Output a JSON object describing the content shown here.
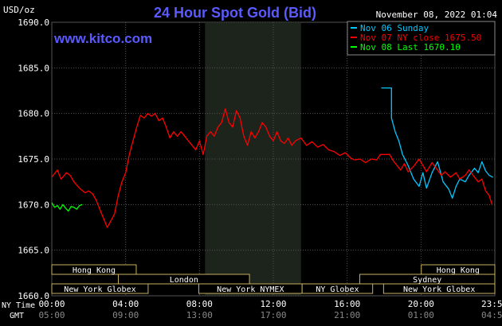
{
  "header": {
    "title": "24 Hour Spot Gold (Bid)",
    "unit": "USD/oz",
    "timestamp": "November 08, 2022 01:04",
    "site": "www.kitco.com"
  },
  "legend": {
    "items": [
      {
        "label": "Nov 06 Sunday",
        "color": "#00c8ff"
      },
      {
        "label": "Nov 07 NY close 1675.50",
        "color": "#ff0000"
      },
      {
        "label": "Nov 08 Last 1670.10",
        "color": "#00ff00"
      }
    ]
  },
  "axes": {
    "y_ticks": [
      "1690.0",
      "1685.0",
      "1680.0",
      "1675.0",
      "1670.0",
      "1665.0",
      "1660.0"
    ],
    "x_ticks_ny": [
      "00:00",
      "04:00",
      "08:00",
      "12:00",
      "16:00",
      "20:00",
      "23:59"
    ],
    "x_ticks_gmt": [
      "05:00",
      "09:00",
      "13:00",
      "17:00",
      "21:00",
      "01:00",
      "04:59"
    ],
    "ny_time_label": "NY Time",
    "gmt_label": "GMT"
  },
  "sessions": [
    {
      "label": "Hong Kong",
      "start": 0,
      "end": 8.5
    },
    {
      "label": "London",
      "start": 6.7,
      "end": 19.9
    },
    {
      "label": "New York Globex",
      "start": 0,
      "end": 9.7
    },
    {
      "label": "New York NYMEX",
      "start": 14.8,
      "end": 25.2
    },
    {
      "label": "NY Globex",
      "start": 25.2,
      "end": 32.3
    },
    {
      "label": "Hong Kong",
      "start": 37.2,
      "end": 44.6
    },
    {
      "label": "Sydney",
      "start": 31.0,
      "end": 44.6
    },
    {
      "label": "New York Globex",
      "start": 33.4,
      "end": 44.6
    }
  ],
  "chart_data": {
    "type": "line",
    "title": "24 Hour Spot Gold (Bid)",
    "ylabel": "USD/oz",
    "xlabel": "NY Time",
    "x_range": [
      0,
      24
    ],
    "ylim": [
      1660,
      1690
    ],
    "highlight_band_hours": [
      8.3,
      13.5
    ],
    "series": [
      {
        "name": "Nov 06 Sunday",
        "color": "#00c8ff",
        "points": [
          [
            17.85,
            1682.8
          ],
          [
            18.4,
            1682.8
          ],
          [
            18.4,
            1679.5
          ],
          [
            18.6,
            1678.0
          ],
          [
            18.8,
            1677.0
          ],
          [
            19.0,
            1675.5
          ],
          [
            19.3,
            1674.3
          ],
          [
            19.6,
            1672.8
          ],
          [
            19.9,
            1672.0
          ],
          [
            20.1,
            1673.5
          ],
          [
            20.3,
            1671.8
          ],
          [
            20.6,
            1673.5
          ],
          [
            20.9,
            1674.7
          ],
          [
            21.2,
            1672.5
          ],
          [
            21.5,
            1671.7
          ],
          [
            21.7,
            1670.7
          ],
          [
            21.9,
            1672.0
          ],
          [
            22.1,
            1672.8
          ],
          [
            22.4,
            1672.5
          ],
          [
            22.6,
            1673.2
          ],
          [
            22.9,
            1674.0
          ],
          [
            23.1,
            1673.5
          ],
          [
            23.3,
            1674.7
          ],
          [
            23.5,
            1673.7
          ],
          [
            23.7,
            1673.2
          ],
          [
            23.9,
            1673.0
          ]
        ]
      },
      {
        "name": "Nov 07 NY close 1675.50",
        "color": "#ff0000",
        "points": [
          [
            0.0,
            1673.0
          ],
          [
            0.3,
            1673.8
          ],
          [
            0.5,
            1672.8
          ],
          [
            0.8,
            1673.5
          ],
          [
            1.0,
            1673.2
          ],
          [
            1.2,
            1672.5
          ],
          [
            1.5,
            1671.8
          ],
          [
            1.8,
            1671.3
          ],
          [
            2.0,
            1671.5
          ],
          [
            2.2,
            1671.2
          ],
          [
            2.4,
            1670.5
          ],
          [
            2.6,
            1669.5
          ],
          [
            2.8,
            1668.5
          ],
          [
            3.0,
            1667.5
          ],
          [
            3.2,
            1668.2
          ],
          [
            3.4,
            1669.0
          ],
          [
            3.6,
            1671.0
          ],
          [
            3.8,
            1672.5
          ],
          [
            4.0,
            1673.5
          ],
          [
            4.2,
            1675.5
          ],
          [
            4.4,
            1677.0
          ],
          [
            4.6,
            1678.5
          ],
          [
            4.8,
            1679.8
          ],
          [
            5.0,
            1679.5
          ],
          [
            5.2,
            1680.0
          ],
          [
            5.4,
            1679.7
          ],
          [
            5.6,
            1680.0
          ],
          [
            5.8,
            1679.2
          ],
          [
            6.0,
            1679.5
          ],
          [
            6.2,
            1678.5
          ],
          [
            6.4,
            1677.3
          ],
          [
            6.6,
            1678.0
          ],
          [
            6.8,
            1677.5
          ],
          [
            7.0,
            1678.0
          ],
          [
            7.2,
            1677.5
          ],
          [
            7.4,
            1677.0
          ],
          [
            7.6,
            1676.5
          ],
          [
            7.8,
            1676.0
          ],
          [
            8.0,
            1677.0
          ],
          [
            8.2,
            1675.5
          ],
          [
            8.4,
            1677.5
          ],
          [
            8.6,
            1678.0
          ],
          [
            8.8,
            1677.5
          ],
          [
            9.0,
            1678.5
          ],
          [
            9.2,
            1679.0
          ],
          [
            9.4,
            1680.5
          ],
          [
            9.6,
            1679.0
          ],
          [
            9.8,
            1678.5
          ],
          [
            10.0,
            1680.3
          ],
          [
            10.2,
            1679.5
          ],
          [
            10.4,
            1677.5
          ],
          [
            10.6,
            1676.5
          ],
          [
            10.8,
            1678.0
          ],
          [
            11.0,
            1677.3
          ],
          [
            11.2,
            1678.0
          ],
          [
            11.4,
            1679.0
          ],
          [
            11.6,
            1678.5
          ],
          [
            11.8,
            1677.5
          ],
          [
            12.0,
            1677.0
          ],
          [
            12.2,
            1678.0
          ],
          [
            12.4,
            1677.0
          ],
          [
            12.6,
            1676.7
          ],
          [
            12.8,
            1677.3
          ],
          [
            13.0,
            1676.5
          ],
          [
            13.2,
            1677.0
          ],
          [
            13.5,
            1677.3
          ],
          [
            13.8,
            1676.5
          ],
          [
            14.1,
            1676.9
          ],
          [
            14.4,
            1676.3
          ],
          [
            14.7,
            1676.6
          ],
          [
            15.0,
            1676.0
          ],
          [
            15.3,
            1675.8
          ],
          [
            15.6,
            1675.4
          ],
          [
            15.9,
            1675.7
          ],
          [
            16.2,
            1675.1
          ],
          [
            16.4,
            1674.9
          ],
          [
            16.7,
            1675.0
          ],
          [
            17.0,
            1674.6
          ],
          [
            17.3,
            1675.0
          ],
          [
            17.6,
            1674.9
          ],
          [
            17.8,
            1675.5
          ],
          [
            18.3,
            1675.5
          ],
          [
            18.5,
            1674.8
          ],
          [
            18.7,
            1674.3
          ],
          [
            18.9,
            1673.8
          ],
          [
            19.1,
            1674.5
          ],
          [
            19.3,
            1673.6
          ],
          [
            19.6,
            1674.2
          ],
          [
            19.9,
            1675.0
          ],
          [
            20.1,
            1674.3
          ],
          [
            20.3,
            1673.6
          ],
          [
            20.6,
            1674.6
          ],
          [
            20.9,
            1673.8
          ],
          [
            21.1,
            1673.2
          ],
          [
            21.3,
            1673.6
          ],
          [
            21.6,
            1673.0
          ],
          [
            21.9,
            1673.5
          ],
          [
            22.1,
            1672.8
          ],
          [
            22.4,
            1673.2
          ],
          [
            22.6,
            1673.8
          ],
          [
            22.9,
            1673.0
          ],
          [
            23.1,
            1672.5
          ],
          [
            23.3,
            1672.8
          ],
          [
            23.5,
            1671.5
          ],
          [
            23.7,
            1671.0
          ],
          [
            23.85,
            1670.0
          ]
        ]
      },
      {
        "name": "Nov 08 Last 1670.10",
        "color": "#00ff00",
        "points": [
          [
            0.0,
            1670.2
          ],
          [
            0.15,
            1669.7
          ],
          [
            0.3,
            1669.9
          ],
          [
            0.45,
            1669.5
          ],
          [
            0.6,
            1670.0
          ],
          [
            0.75,
            1669.6
          ],
          [
            0.9,
            1669.3
          ],
          [
            1.05,
            1669.8
          ],
          [
            1.2,
            1669.7
          ],
          [
            1.35,
            1669.5
          ],
          [
            1.5,
            1669.9
          ],
          [
            1.65,
            1670.0
          ]
        ]
      }
    ]
  }
}
